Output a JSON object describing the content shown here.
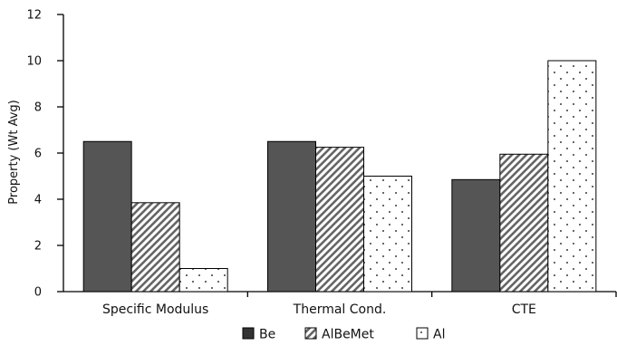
{
  "chart_data": {
    "type": "bar",
    "title": "",
    "xlabel": "",
    "ylabel": "Property (Wt Avg)",
    "ylim": [
      0,
      12
    ],
    "yticks": [
      0,
      2,
      4,
      6,
      8,
      10,
      12
    ],
    "grid": false,
    "legend_position": "bottom",
    "categories": [
      "Specific Modulus",
      "Thermal Cond.",
      "CTE"
    ],
    "series": [
      {
        "name": "Be",
        "values": [
          6.5,
          6.5,
          4.85
        ],
        "color": "#555555",
        "pattern": "solid"
      },
      {
        "name": "AlBeMet",
        "values": [
          3.85,
          6.25,
          5.95
        ],
        "color": "#666666",
        "pattern": "diagonal-stripes"
      },
      {
        "name": "Al",
        "values": [
          1.0,
          5.0,
          10.0
        ],
        "color": "#000000",
        "pattern": "dots"
      }
    ]
  }
}
